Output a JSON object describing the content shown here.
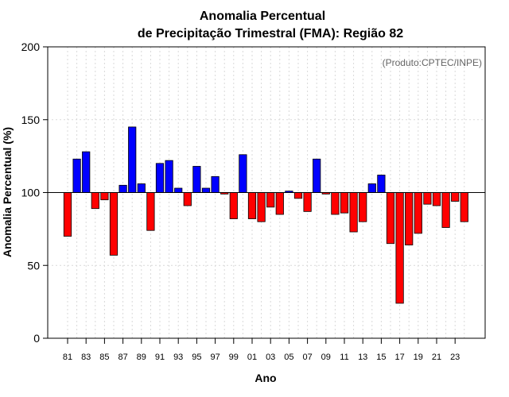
{
  "chart_data": {
    "type": "bar",
    "title_line1": "Anomalia Percentual",
    "title_line2": "de Precipitação Trimestral (FMA): Região 82",
    "xlabel": "Ano",
    "ylabel": "Anomalia Percentual (%)",
    "source": "(Produto:CPTEC/INPE)",
    "ylim": [
      0,
      200
    ],
    "yticks": [
      0,
      50,
      100,
      150,
      200
    ],
    "baseline": 100,
    "grid": true,
    "colors": {
      "above": "#0000ff",
      "below": "#ff0000",
      "edge": "#000000"
    },
    "tick_labels": [
      "81",
      "83",
      "85",
      "87",
      "89",
      "91",
      "93",
      "95",
      "97",
      "99",
      "01",
      "03",
      "05",
      "07",
      "09",
      "11",
      "13",
      "15",
      "17",
      "19",
      "21",
      "23"
    ],
    "categories": [
      "1981",
      "1982",
      "1983",
      "1984",
      "1985",
      "1986",
      "1987",
      "1988",
      "1989",
      "1990",
      "1991",
      "1992",
      "1993",
      "1994",
      "1995",
      "1996",
      "1997",
      "1998",
      "1999",
      "2000",
      "2001",
      "2002",
      "2003",
      "2004",
      "2005",
      "2006",
      "2007",
      "2008",
      "2009",
      "2010",
      "2011",
      "2012",
      "2013",
      "2014",
      "2015",
      "2016",
      "2017",
      "2018",
      "2019",
      "2020",
      "2021",
      "2022",
      "2023",
      "2024"
    ],
    "values": [
      70,
      123,
      128,
      89,
      95,
      57,
      105,
      145,
      106,
      74,
      120,
      122,
      103,
      91,
      118,
      103,
      111,
      99,
      82,
      126,
      82,
      80,
      90,
      85,
      101,
      96,
      87,
      123,
      99,
      85,
      86,
      73,
      80,
      106,
      112,
      65,
      24,
      64,
      72,
      92,
      91,
      76,
      94,
      80
    ]
  }
}
